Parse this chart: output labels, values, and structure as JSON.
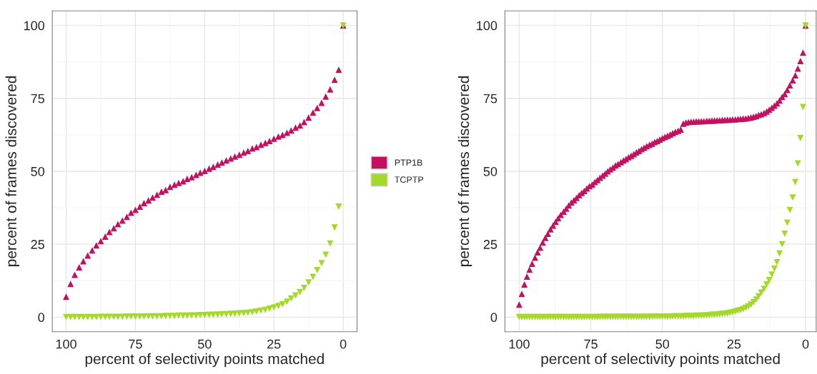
{
  "chart_data": [
    {
      "type": "scatter",
      "xlabel": "percent of selectivity points matched",
      "ylabel": "percent of frames discovered",
      "xlim": [
        105,
        -5
      ],
      "ylim": [
        -5,
        105
      ],
      "xticks": [
        100,
        75,
        50,
        25,
        0
      ],
      "yticks": [
        0,
        25,
        50,
        75,
        100
      ],
      "grid": true,
      "legend": "right",
      "series": [
        {
          "name": "PTP1B",
          "color": "#c2125f",
          "marker": "triangle",
          "x": [
            100,
            98.4,
            96.9,
            95.3,
            93.8,
            92.2,
            90.6,
            89.1,
            87.5,
            85.9,
            84.4,
            82.8,
            81.3,
            79.7,
            78.1,
            76.6,
            75,
            73.4,
            71.9,
            70.3,
            68.8,
            67.2,
            65.6,
            64.1,
            62.5,
            60.9,
            59.4,
            57.8,
            56.3,
            54.7,
            53.1,
            51.6,
            50,
            48.4,
            46.9,
            45.3,
            43.8,
            42.2,
            40.6,
            39.1,
            37.5,
            35.9,
            34.4,
            32.8,
            31.3,
            29.7,
            28.1,
            26.6,
            25,
            23.4,
            21.9,
            20.3,
            18.8,
            17.2,
            15.6,
            14.1,
            12.5,
            10.9,
            9.4,
            7.8,
            6.3,
            4.7,
            3.1,
            1.6,
            0
          ],
          "values": [
            7.0,
            11.4,
            14.5,
            17.1,
            19.2,
            21.1,
            22.9,
            24.6,
            26.1,
            27.6,
            29.2,
            30.5,
            31.9,
            33.1,
            34.4,
            35.8,
            36.8,
            37.9,
            39.1,
            40.0,
            41.0,
            42.0,
            43.0,
            43.6,
            44.7,
            45.4,
            46.0,
            46.6,
            47.4,
            48.0,
            48.8,
            49.5,
            50.1,
            50.9,
            51.5,
            52.3,
            53.0,
            53.7,
            54.4,
            55.1,
            55.7,
            56.4,
            57.0,
            57.8,
            58.3,
            59.1,
            59.7,
            60.4,
            61.2,
            61.9,
            62.5,
            63.2,
            64.0,
            65.0,
            65.7,
            66.9,
            68.4,
            70.1,
            71.7,
            73.5,
            75.6,
            78.1,
            81.4,
            84.8,
            100
          ]
        },
        {
          "name": "TCPTP",
          "color": "#a4d92c",
          "marker": "triangle-down",
          "x": [
            100,
            98.4,
            96.9,
            95.3,
            93.8,
            92.2,
            90.6,
            89.1,
            87.5,
            85.9,
            84.4,
            82.8,
            81.3,
            79.7,
            78.1,
            76.6,
            75,
            73.4,
            71.9,
            70.3,
            68.8,
            67.2,
            65.6,
            64.1,
            62.5,
            60.9,
            59.4,
            57.8,
            56.3,
            54.7,
            53.1,
            51.6,
            50,
            48.4,
            46.9,
            45.3,
            43.8,
            42.2,
            40.6,
            39.1,
            37.5,
            35.9,
            34.4,
            32.8,
            31.3,
            29.7,
            28.1,
            26.6,
            25,
            23.4,
            21.9,
            20.3,
            18.8,
            17.2,
            15.6,
            14.1,
            12.5,
            10.9,
            9.4,
            7.8,
            6.3,
            4.7,
            3.1,
            1.6,
            0
          ],
          "values": [
            0,
            0,
            0,
            0,
            0,
            0,
            0,
            0,
            0.1,
            0.1,
            0.1,
            0.1,
            0.1,
            0.1,
            0.2,
            0.2,
            0.2,
            0.2,
            0.2,
            0.3,
            0.3,
            0.3,
            0.3,
            0.4,
            0.4,
            0.4,
            0.5,
            0.5,
            0.5,
            0.6,
            0.6,
            0.7,
            0.7,
            0.8,
            0.8,
            0.9,
            1.0,
            1.0,
            1.1,
            1.2,
            1.3,
            1.4,
            1.5,
            1.7,
            1.9,
            2.2,
            2.5,
            2.9,
            3.3,
            3.8,
            4.4,
            5.3,
            6.4,
            7.4,
            8.6,
            10.0,
            11.9,
            13.8,
            16.1,
            18.5,
            21.4,
            25.2,
            30.7,
            37.9,
            100
          ]
        }
      ]
    },
    {
      "type": "scatter",
      "xlabel": "percent of selectivity points matched",
      "ylabel": "percent of frames discovered",
      "xlim": [
        105,
        -3.7
      ],
      "ylim": [
        -5,
        105
      ],
      "xticks": [
        100,
        75,
        50,
        25,
        0
      ],
      "yticks": [
        0,
        25,
        50,
        75,
        100
      ],
      "grid": true,
      "series": [
        {
          "color": "#c2125f",
          "marker": "triangle",
          "x": [
            0,
            0.9,
            1.8,
            2.7,
            3.6,
            4.5,
            5.5,
            6.4,
            7.3,
            8.2,
            9.1,
            10,
            10.9,
            11.8,
            12.7,
            13.6,
            14.5,
            15.5,
            16.4,
            17.3,
            18.2,
            19.1,
            20,
            20.9,
            21.8,
            22.7,
            23.6,
            24.5,
            25.5,
            26.4,
            27.3,
            28.2,
            29.1,
            30,
            30.9,
            31.8,
            32.7,
            33.6,
            34.5,
            35.5,
            36.4,
            37.3,
            38.2,
            39.1,
            40,
            40.9,
            41.8,
            42.7,
            43.6,
            44.5,
            45.5,
            46.4,
            47.3,
            48.2,
            49.1,
            50,
            50.9,
            51.8,
            52.7,
            53.6,
            54.5,
            55.5,
            56.4,
            57.3,
            58.2,
            59.1,
            60,
            60.9,
            61.8,
            62.7,
            63.6,
            64.5,
            65.5,
            66.4,
            67.3,
            68.2,
            69.1,
            70,
            70.9,
            71.8,
            72.7,
            73.6,
            74.5,
            75.5,
            76.4,
            77.3,
            78.2,
            79.1,
            80,
            80.9,
            81.8,
            82.7,
            83.6,
            84.5,
            85.5,
            86.4,
            87.3,
            88.2,
            89.1,
            90,
            90.9,
            91.8,
            92.7,
            93.6,
            94.5,
            95.5,
            96.4,
            97.3,
            98.2,
            99.1,
            100
          ],
          "values": [
            100,
            90.7,
            87.8,
            85.2,
            82.9,
            81.2,
            79.5,
            77.9,
            76.5,
            75.5,
            74.3,
            73.3,
            72.5,
            71.8,
            71.1,
            70.5,
            70.0,
            69.6,
            69.3,
            68.9,
            68.7,
            68.5,
            68.3,
            68.1,
            68.1,
            68.0,
            67.9,
            67.8,
            67.8,
            67.7,
            67.7,
            67.6,
            67.6,
            67.5,
            67.5,
            67.4,
            67.4,
            67.3,
            67.3,
            67.2,
            67.2,
            67.1,
            67.1,
            67.0,
            67.0,
            66.9,
            66.7,
            66.3,
            64.3,
            63.9,
            63.5,
            63.1,
            62.6,
            62.2,
            61.8,
            61.4,
            60.9,
            60.4,
            60.0,
            59.5,
            59.1,
            58.6,
            58.1,
            57.6,
            57.0,
            56.5,
            55.9,
            55.3,
            54.8,
            54.2,
            53.7,
            53.1,
            52.5,
            52.0,
            51.3,
            50.7,
            50.0,
            49.2,
            48.5,
            47.8,
            47.0,
            46.3,
            45.5,
            44.9,
            44.1,
            43.3,
            42.6,
            41.8,
            40.9,
            40.1,
            39.3,
            38.3,
            37.2,
            36.2,
            35.1,
            33.9,
            32.7,
            31.4,
            30.1,
            28.6,
            27.2,
            25.6,
            23.8,
            22.2,
            20.4,
            18.3,
            16.3,
            13.9,
            11.2,
            8.0,
            4.3
          ]
        },
        {
          "color": "#a4d92c",
          "marker": "triangle-down",
          "x": [
            0,
            0.9,
            1.8,
            2.7,
            3.6,
            4.5,
            5.5,
            6.4,
            7.3,
            8.2,
            9.1,
            10,
            10.9,
            11.8,
            12.7,
            13.6,
            14.5,
            15.5,
            16.4,
            17.3,
            18.2,
            19.1,
            20,
            20.9,
            21.8,
            22.7,
            23.6,
            24.5,
            25.5,
            26.4,
            27.3,
            28.2,
            29.1,
            30,
            30.9,
            31.8,
            32.7,
            33.6,
            34.5,
            35.5,
            36.4,
            37.3,
            38.2,
            39.1,
            40,
            40.9,
            41.8,
            42.7,
            43.6,
            44.5,
            45.5,
            46.4,
            47.3,
            48.2,
            49.1,
            50,
            50.9,
            51.8,
            52.7,
            53.6,
            54.5,
            55.5,
            56.4,
            57.3,
            58.2,
            59.1,
            60,
            60.9,
            61.8,
            62.7,
            63.6,
            64.5,
            65.5,
            66.4,
            67.3,
            68.2,
            69.1,
            70,
            70.9,
            71.8,
            72.7,
            73.6,
            74.5,
            75.5,
            76.4,
            77.3,
            78.2,
            79.1,
            80,
            80.9,
            81.8,
            82.7,
            83.6,
            84.5,
            85.5,
            86.4,
            87.3,
            88.2,
            89.1,
            90,
            90.9,
            91.8,
            92.7,
            93.6,
            94.5,
            95.5,
            96.4,
            97.3,
            98.2,
            99.1,
            100
          ],
          "values": [
            100,
            72.0,
            61.4,
            52.7,
            46.3,
            41.0,
            36.7,
            32.4,
            28.6,
            25.0,
            21.8,
            18.8,
            16.6,
            14.6,
            12.7,
            11.2,
            9.7,
            8.4,
            7.1,
            6.0,
            5.1,
            4.3,
            3.7,
            3.2,
            2.8,
            2.4,
            2.2,
            1.9,
            1.7,
            1.5,
            1.3,
            1.2,
            1.1,
            1.0,
            0.9,
            0.8,
            0.8,
            0.7,
            0.6,
            0.6,
            0.5,
            0.5,
            0.5,
            0.4,
            0.4,
            0.4,
            0.4,
            0.3,
            0.3,
            0.3,
            0.3,
            0.3,
            0.2,
            0.2,
            0.2,
            0.2,
            0.2,
            0.2,
            0.2,
            0.2,
            0.1,
            0.1,
            0.1,
            0.1,
            0.1,
            0.1,
            0.1,
            0.1,
            0.1,
            0.1,
            0.1,
            0.1,
            0.1,
            0.1,
            0.1,
            0.1,
            0.1,
            0.1,
            0.1,
            0.1,
            0,
            0,
            0,
            0,
            0,
            0,
            0,
            0,
            0,
            0,
            0,
            0,
            0,
            0,
            0,
            0,
            0,
            0,
            0,
            0,
            0,
            0,
            0,
            0,
            0,
            0,
            0,
            0,
            0,
            0,
            0
          ]
        }
      ]
    }
  ]
}
